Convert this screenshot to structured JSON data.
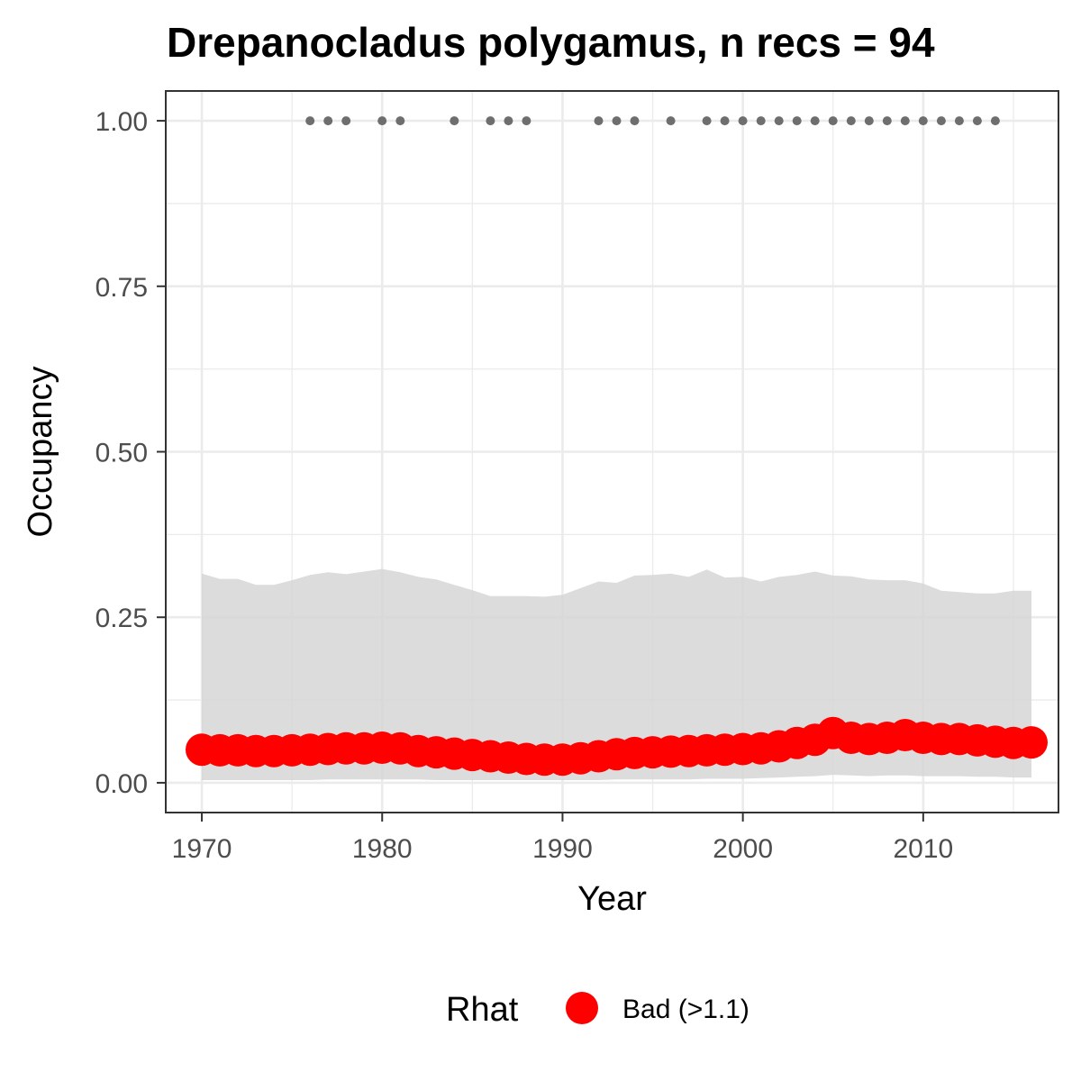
{
  "chart_data": {
    "type": "line",
    "title": "Drepanocladus polygamus, n recs = 94",
    "xlabel": "Year",
    "ylabel": "Occupancy",
    "xlim": [
      1968,
      2017.5
    ],
    "ylim": [
      -0.045,
      1.045
    ],
    "xticks": [
      1970,
      1980,
      1990,
      2000,
      2010
    ],
    "yticks": [
      0.0,
      0.25,
      0.5,
      0.75,
      1.0
    ],
    "ytick_labels": [
      "0.00",
      "0.25",
      "0.50",
      "0.75",
      "1.00"
    ],
    "grid": true,
    "colors": {
      "mean": "#ff0000",
      "ribbon": "#d6d6d6",
      "records": "#6e6e6e",
      "grid": "#ebebeb",
      "panel_border": "#333333"
    },
    "years": [
      1970,
      1971,
      1972,
      1973,
      1974,
      1975,
      1976,
      1977,
      1978,
      1979,
      1980,
      1981,
      1982,
      1983,
      1984,
      1985,
      1986,
      1987,
      1988,
      1989,
      1990,
      1991,
      1992,
      1993,
      1994,
      1995,
      1996,
      1997,
      1998,
      1999,
      2000,
      2001,
      2002,
      2003,
      2004,
      2005,
      2006,
      2007,
      2008,
      2009,
      2010,
      2011,
      2012,
      2013,
      2014,
      2015,
      2016
    ],
    "mean": [
      0.05,
      0.049,
      0.049,
      0.048,
      0.048,
      0.049,
      0.05,
      0.051,
      0.052,
      0.052,
      0.053,
      0.052,
      0.048,
      0.046,
      0.044,
      0.042,
      0.04,
      0.038,
      0.036,
      0.035,
      0.035,
      0.037,
      0.04,
      0.043,
      0.045,
      0.046,
      0.047,
      0.048,
      0.049,
      0.05,
      0.051,
      0.052,
      0.055,
      0.06,
      0.065,
      0.075,
      0.068,
      0.066,
      0.068,
      0.072,
      0.068,
      0.066,
      0.066,
      0.064,
      0.062,
      0.06,
      0.061
    ],
    "lower": [
      0.004,
      0.004,
      0.004,
      0.004,
      0.004,
      0.004,
      0.004,
      0.005,
      0.005,
      0.005,
      0.005,
      0.005,
      0.005,
      0.004,
      0.004,
      0.004,
      0.004,
      0.004,
      0.004,
      0.004,
      0.004,
      0.004,
      0.004,
      0.005,
      0.005,
      0.005,
      0.005,
      0.005,
      0.006,
      0.006,
      0.006,
      0.007,
      0.008,
      0.009,
      0.01,
      0.012,
      0.011,
      0.01,
      0.011,
      0.011,
      0.01,
      0.01,
      0.01,
      0.009,
      0.009,
      0.008,
      0.008
    ],
    "upper": [
      0.316,
      0.308,
      0.308,
      0.299,
      0.299,
      0.306,
      0.314,
      0.318,
      0.315,
      0.319,
      0.323,
      0.318,
      0.311,
      0.307,
      0.299,
      0.291,
      0.282,
      0.282,
      0.282,
      0.281,
      0.284,
      0.294,
      0.304,
      0.302,
      0.313,
      0.314,
      0.316,
      0.311,
      0.322,
      0.31,
      0.311,
      0.304,
      0.311,
      0.314,
      0.319,
      0.313,
      0.312,
      0.307,
      0.306,
      0.306,
      0.301,
      0.29,
      0.288,
      0.286,
      0.286,
      0.29,
      0.29
    ],
    "record_years": [
      1976,
      1977,
      1978,
      1980,
      1981,
      1984,
      1986,
      1987,
      1988,
      1992,
      1993,
      1994,
      1996,
      1998,
      1999,
      2000,
      2001,
      2002,
      2003,
      2004,
      2005,
      2006,
      2007,
      2008,
      2009,
      2010,
      2011,
      2012,
      2013,
      2014
    ],
    "record_value": 1.0,
    "legend": {
      "title": "Rhat",
      "entries": [
        {
          "label": "Bad (>1.1)",
          "color": "#ff0000"
        }
      ],
      "position": "bottom"
    }
  }
}
